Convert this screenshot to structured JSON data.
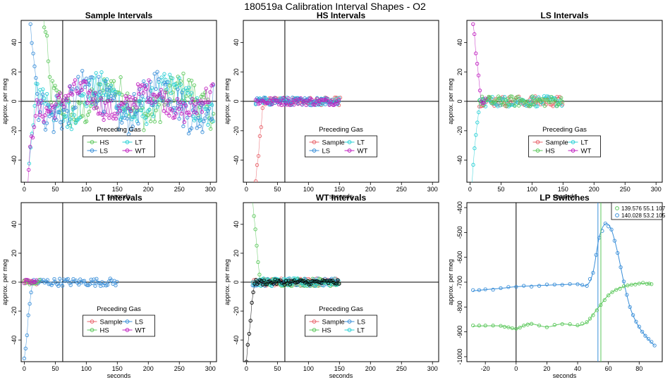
{
  "figure_title": "180519a   Calibration Interval Shapes - O2",
  "colors": {
    "Sample": "#e8636b",
    "HS": "#5cc85c",
    "LS": "#3a8fd9",
    "LT": "#2bd0d6",
    "WT": "#c020c0",
    "black": "#000000"
  },
  "chart_data": [
    {
      "type": "scatter",
      "title": "Sample Intervals",
      "xlabel": "seconds",
      "ylabel": "approx. per meg",
      "xlim": [
        -5,
        310
      ],
      "ylim": [
        -55,
        55
      ],
      "xticks": [
        0,
        50,
        100,
        150,
        200,
        250,
        300
      ],
      "yticks": [
        -40,
        -20,
        0,
        20,
        40
      ],
      "vline": 62,
      "hline": 0,
      "legend": {
        "title": "Preceding Gas",
        "position": "bottom-center",
        "entries": [
          "HS",
          "LT",
          "LS",
          "WT"
        ]
      },
      "series": [
        {
          "name": "HS",
          "start": 30,
          "end": 305,
          "spread": 12,
          "spike": "up"
        },
        {
          "name": "LT",
          "start": 8,
          "end": 305,
          "spread": 12,
          "spike": "down"
        },
        {
          "name": "LS",
          "start": 10,
          "end": 305,
          "spread": 14,
          "spike": "up"
        },
        {
          "name": "WT",
          "start": 5,
          "end": 305,
          "spread": 9,
          "spike": "down"
        }
      ]
    },
    {
      "type": "scatter",
      "title": "HS Intervals",
      "xlabel": "seconds",
      "ylabel": "approx. per meg",
      "xlim": [
        -5,
        310
      ],
      "ylim": [
        -55,
        55
      ],
      "xticks": [
        0,
        50,
        100,
        150,
        200,
        250,
        300
      ],
      "yticks": [
        -40,
        -20,
        0,
        20,
        40
      ],
      "vline": 62,
      "hline": 0,
      "legend": {
        "title": "Preceding Gas",
        "position": "bottom-center",
        "entries": [
          "Sample",
          "LT",
          "LS",
          "WT"
        ]
      },
      "series": [
        {
          "name": "Sample",
          "start": 15,
          "end": 152,
          "spread": 3,
          "spike": "down"
        },
        {
          "name": "LT",
          "start": 15,
          "end": 150,
          "spread": 3,
          "spike": "none"
        },
        {
          "name": "LS",
          "start": 15,
          "end": 150,
          "spread": 3,
          "spike": "none"
        },
        {
          "name": "WT",
          "start": 15,
          "end": 150,
          "spread": 3,
          "spike": "none"
        }
      ]
    },
    {
      "type": "scatter",
      "title": "LS Intervals",
      "xlabel": "seconds",
      "ylabel": "approx. per meg",
      "xlim": [
        -5,
        310
      ],
      "ylim": [
        -55,
        55
      ],
      "xticks": [
        0,
        50,
        100,
        150,
        200,
        250,
        300
      ],
      "yticks": [
        -40,
        -20,
        0,
        20,
        40
      ],
      "vline": null,
      "hline": 0,
      "legend": {
        "title": "Preceding Gas",
        "position": "bottom-center",
        "entries": [
          "Sample",
          "LT",
          "HS",
          "WT"
        ]
      },
      "series": [
        {
          "name": "Sample",
          "start": 15,
          "end": 150,
          "spread": 4,
          "spike": "none"
        },
        {
          "name": "LT",
          "start": 3,
          "end": 150,
          "spread": 4,
          "spike": "down"
        },
        {
          "name": "HS",
          "start": 15,
          "end": 150,
          "spread": 4,
          "spike": "none"
        },
        {
          "name": "WT",
          "start": 5,
          "end": 25,
          "spread": 3,
          "spike": "up"
        }
      ]
    },
    {
      "type": "scatter",
      "title": "LT Intervals",
      "xlabel": "seconds",
      "ylabel": "approx. per meg",
      "xlim": [
        -5,
        310
      ],
      "ylim": [
        -55,
        55
      ],
      "xticks": [
        0,
        50,
        100,
        150,
        200,
        250,
        300
      ],
      "yticks": [
        -40,
        -20,
        0,
        20,
        40
      ],
      "vline": 62,
      "hline": 0,
      "legend": {
        "title": "Preceding Gas",
        "position": "bottom-center",
        "entries": [
          "Sample",
          "LS",
          "HS",
          "WT"
        ]
      },
      "series": [
        {
          "name": "Sample",
          "start": 0,
          "end": 20,
          "spread": 2,
          "spike": "none"
        },
        {
          "name": "LS",
          "start": 0,
          "end": 150,
          "spread": 3,
          "spike": "down"
        },
        {
          "name": "HS",
          "start": 0,
          "end": 25,
          "spread": 2,
          "spike": "none"
        },
        {
          "name": "WT",
          "start": 0,
          "end": 20,
          "spread": 2,
          "spike": "none"
        }
      ]
    },
    {
      "type": "scatter",
      "title": "WT Intervals",
      "xlabel": "seconds",
      "ylabel": "approx. per meg",
      "xlim": [
        -5,
        310
      ],
      "ylim": [
        -55,
        55
      ],
      "xticks": [
        0,
        50,
        100,
        150,
        200,
        250,
        300
      ],
      "yticks": [
        -40,
        -20,
        0,
        20,
        40
      ],
      "vline": 62,
      "hline": 0,
      "legend": {
        "title": "Preceding Gas",
        "position": "bottom-center",
        "entries": [
          "Sample",
          "LS",
          "HS",
          "LT"
        ]
      },
      "series": [
        {
          "name": "Sample",
          "start": 10,
          "end": 150,
          "spread": 3,
          "spike": "none"
        },
        {
          "name": "LS",
          "start": 10,
          "end": 150,
          "spread": 3,
          "spike": "none"
        },
        {
          "name": "HS",
          "start": 10,
          "end": 150,
          "spread": 3,
          "spike": "up"
        },
        {
          "name": "LT",
          "start": 10,
          "end": 150,
          "spread": 3,
          "spike": "none"
        },
        {
          "name": "black",
          "start": 0,
          "end": 150,
          "spread": 2,
          "spike": "down"
        }
      ]
    },
    {
      "type": "line",
      "title": "LP Switches",
      "xlabel": "seconds",
      "ylabel": "approx. per meg",
      "xlim": [
        -32,
        95
      ],
      "ylim": [
        -1020,
        -380
      ],
      "xticks": [
        -20,
        0,
        20,
        40,
        60,
        80
      ],
      "yticks": [
        -1000,
        -900,
        -800,
        -700,
        -600,
        -500,
        -400
      ],
      "vline": 0,
      "legend": {
        "position": "top-right",
        "entries": [
          {
            "color": "HS",
            "label": "139.576 55.1 107"
          },
          {
            "color": "LS",
            "label": "140.028 53.2 105"
          }
        ]
      },
      "series": [
        {
          "name": "LS",
          "marker_line": 53.2,
          "x": [
            -28,
            -20,
            -10,
            0,
            10,
            20,
            30,
            40,
            46,
            50,
            54,
            58,
            62,
            66,
            70,
            74,
            78,
            82,
            86,
            90
          ],
          "y": [
            -735,
            -730,
            -725,
            -718,
            -715,
            -712,
            -710,
            -708,
            -712,
            -660,
            -520,
            -465,
            -490,
            -580,
            -700,
            -800,
            -860,
            -900,
            -930,
            -955
          ]
        },
        {
          "name": "HS",
          "marker_line": 55.1,
          "x": [
            -28,
            -20,
            -10,
            -5,
            0,
            5,
            10,
            20,
            30,
            40,
            46,
            50,
            55,
            60,
            65,
            70,
            75,
            80,
            85,
            88
          ],
          "y": [
            -877,
            -876,
            -876,
            -882,
            -888,
            -875,
            -868,
            -880,
            -868,
            -875,
            -862,
            -830,
            -790,
            -752,
            -730,
            -718,
            -710,
            -705,
            -705,
            -708
          ]
        }
      ]
    }
  ]
}
